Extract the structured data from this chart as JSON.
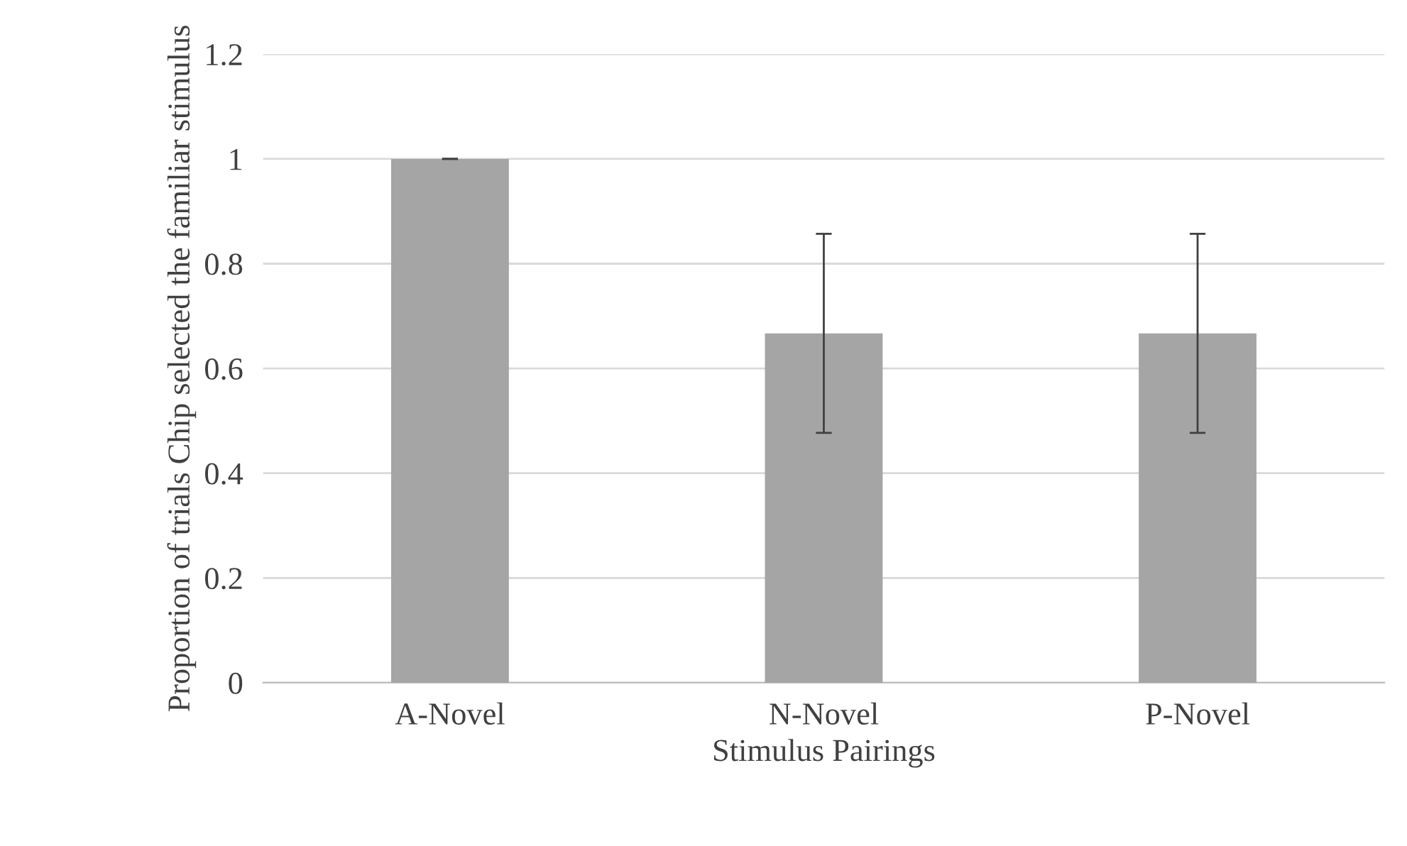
{
  "chart_data": {
    "type": "bar",
    "xlabel": "Stimulus Pairings",
    "ylabel": "Proportion of trials Chip selected the familiar stimulus",
    "categories": [
      "A-Novel",
      "N-Novel",
      "P-Novel"
    ],
    "values": [
      1,
      0.667,
      0.667
    ],
    "errors": [
      0,
      0.19,
      0.19
    ],
    "color": "#a5a5a5",
    "ylim": [
      0,
      1.2
    ],
    "yticks": [
      0,
      {
        "value": 0.2,
        "label": "0.2"
      },
      {
        "value": 0.4,
        "label": "0.4"
      },
      {
        "value": 0.6,
        "label": "0.6"
      },
      {
        "value": 0.8,
        "label": "0.8"
      },
      1,
      {
        "value": 1.2,
        "label": "1.2"
      }
    ],
    "grid": "y"
  }
}
